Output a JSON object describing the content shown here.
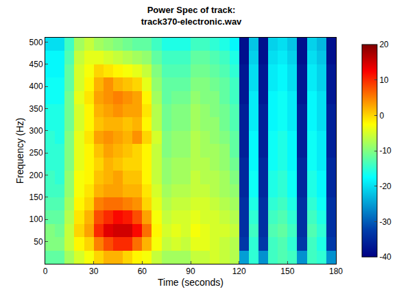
{
  "chart_data": {
    "type": "heatmap",
    "title": "Power Spec of track:\ntrack370-electronic.wav",
    "xlabel": "Time (seconds)",
    "ylabel": "Frequency (Hz)",
    "xlim": [
      0,
      180
    ],
    "ylim": [
      0,
      510
    ],
    "xticks": [
      0,
      30,
      60,
      90,
      120,
      150,
      180
    ],
    "yticks": [
      50,
      100,
      150,
      200,
      250,
      300,
      350,
      400,
      450,
      500
    ],
    "color": "jet",
    "grid": false,
    "x": [
      3,
      9,
      15,
      21,
      27,
      33,
      39,
      45,
      51,
      57,
      63,
      69,
      75,
      81,
      87,
      93,
      99,
      105,
      111,
      117,
      123,
      129,
      135,
      141,
      147,
      153,
      159,
      165,
      171,
      177
    ],
    "y": [
      15,
      45,
      75,
      105,
      135,
      165,
      195,
      225,
      255,
      285,
      315,
      345,
      375,
      405,
      435,
      465,
      495
    ],
    "cells": [
      [
        -12,
        -12,
        -8,
        -5,
        -3,
        0,
        2,
        2,
        0,
        -2,
        -3,
        -6,
        -8,
        -8,
        -8,
        -6,
        -6,
        -5,
        -6,
        -7,
        -25,
        -15,
        -26,
        -14,
        -13,
        -14,
        -26,
        -14,
        -15,
        -26
      ],
      [
        -10,
        -10,
        -6,
        -2,
        0,
        5,
        8,
        10,
        10,
        6,
        2,
        -3,
        -6,
        -5,
        -6,
        -4,
        -4,
        -5,
        -6,
        -7,
        -33,
        -15,
        -33,
        -14,
        -13,
        -15,
        -33,
        -14,
        -16,
        -33
      ],
      [
        -10,
        -11,
        -6,
        0,
        3,
        10,
        14,
        15,
        15,
        12,
        6,
        -2,
        -5,
        -4,
        -5,
        -3,
        -4,
        -5,
        -5,
        -6,
        -34,
        -14,
        -34,
        -13,
        -12,
        -14,
        -34,
        -13,
        -15,
        -34
      ],
      [
        -12,
        -12,
        -7,
        -1,
        2,
        8,
        10,
        12,
        11,
        8,
        3,
        -3,
        -6,
        -5,
        -5,
        -4,
        -5,
        -5,
        -6,
        -7,
        -34,
        -15,
        -34,
        -14,
        -13,
        -15,
        -34,
        -14,
        -16,
        -34
      ],
      [
        -13,
        -13,
        -8,
        -2,
        0,
        5,
        6,
        6,
        5,
        4,
        0,
        -4,
        -7,
        -6,
        -6,
        -5,
        -5,
        -6,
        -7,
        -8,
        -34,
        -16,
        -34,
        -15,
        -14,
        -16,
        -34,
        -15,
        -17,
        -34
      ],
      [
        -14,
        -14,
        -9,
        -3,
        -1,
        2,
        3,
        3,
        2,
        2,
        -1,
        -5,
        -8,
        -7,
        -7,
        -6,
        -6,
        -7,
        -8,
        -9,
        -35,
        -17,
        -35,
        -16,
        -15,
        -17,
        -35,
        -16,
        -18,
        -35
      ],
      [
        -14,
        -15,
        -9,
        -3,
        -2,
        1,
        2,
        3,
        1,
        1,
        -2,
        -6,
        -9,
        -8,
        -8,
        -6,
        -7,
        -7,
        -8,
        -10,
        -35,
        -17,
        -35,
        -16,
        -15,
        -17,
        -35,
        -16,
        -18,
        -35
      ],
      [
        -15,
        -15,
        -10,
        -4,
        -2,
        0,
        2,
        1,
        0,
        0,
        -2,
        -6,
        -9,
        -8,
        -8,
        -7,
        -7,
        -8,
        -9,
        -11,
        -35,
        -18,
        -35,
        -17,
        -16,
        -18,
        -35,
        -17,
        -19,
        -35
      ],
      [
        -15,
        -15,
        -10,
        -4,
        -2,
        1,
        3,
        2,
        1,
        0,
        -2,
        -6,
        -10,
        -9,
        -9,
        -7,
        -8,
        -8,
        -9,
        -12,
        -36,
        -18,
        -36,
        -17,
        -16,
        -18,
        -36,
        -17,
        -19,
        -36
      ],
      [
        -15,
        -16,
        -10,
        -4,
        -1,
        3,
        4,
        3,
        2,
        4,
        0,
        -5,
        -10,
        -9,
        -9,
        -7,
        -8,
        -9,
        -10,
        -12,
        -36,
        -18,
        -36,
        -17,
        -16,
        -18,
        -36,
        -17,
        -19,
        -36
      ],
      [
        -16,
        -16,
        -11,
        -5,
        -2,
        1,
        2,
        2,
        1,
        2,
        -2,
        -7,
        -11,
        -10,
        -10,
        -8,
        -9,
        -9,
        -11,
        -13,
        -36,
        -19,
        -36,
        -18,
        -17,
        -19,
        -36,
        -18,
        -20,
        -36
      ],
      [
        -16,
        -16,
        -11,
        -5,
        -2,
        2,
        3,
        4,
        3,
        3,
        -1,
        -7,
        -11,
        -10,
        -10,
        -8,
        -9,
        -10,
        -11,
        -13,
        -36,
        -19,
        -36,
        -18,
        -17,
        -19,
        -36,
        -18,
        -20,
        -36
      ],
      [
        -17,
        -17,
        -11,
        -4,
        -1,
        3,
        4,
        5,
        4,
        3,
        -2,
        -8,
        -12,
        -11,
        -11,
        -9,
        -10,
        -10,
        -12,
        -14,
        -37,
        -19,
        -37,
        -18,
        -17,
        -19,
        -37,
        -18,
        -20,
        -37
      ],
      [
        -17,
        -17,
        -12,
        -5,
        -2,
        2,
        4,
        2,
        1,
        0,
        -4,
        -9,
        -12,
        -12,
        -12,
        -10,
        -10,
        -11,
        -12,
        -14,
        -37,
        -20,
        -37,
        -19,
        -18,
        -20,
        -37,
        -19,
        -21,
        -37
      ],
      [
        -18,
        -18,
        -12,
        -5,
        -3,
        0,
        -1,
        -2,
        -3,
        -4,
        -6,
        -10,
        -13,
        -13,
        -13,
        -11,
        -11,
        -12,
        -13,
        -15,
        -37,
        -20,
        -37,
        -19,
        -18,
        -20,
        -37,
        -19,
        -21,
        -37
      ],
      [
        -18,
        -18,
        -13,
        -6,
        -4,
        -4,
        -5,
        -6,
        -7,
        -8,
        -9,
        -12,
        -14,
        -14,
        -14,
        -12,
        -12,
        -13,
        -14,
        -16,
        -38,
        -21,
        -38,
        -20,
        -19,
        -21,
        -38,
        -20,
        -22,
        -38
      ],
      [
        -20,
        -20,
        -14,
        -8,
        -6,
        -8,
        -9,
        -10,
        -11,
        -12,
        -12,
        -14,
        -16,
        -16,
        -16,
        -14,
        -14,
        -15,
        -16,
        -18,
        -38,
        -22,
        -38,
        -21,
        -20,
        -22,
        -38,
        -21,
        -23,
        -38
      ]
    ],
    "colorbar": {
      "range": [
        -40,
        20
      ],
      "ticks": [
        -40,
        -30,
        -20,
        -10,
        0,
        10,
        20
      ]
    }
  }
}
